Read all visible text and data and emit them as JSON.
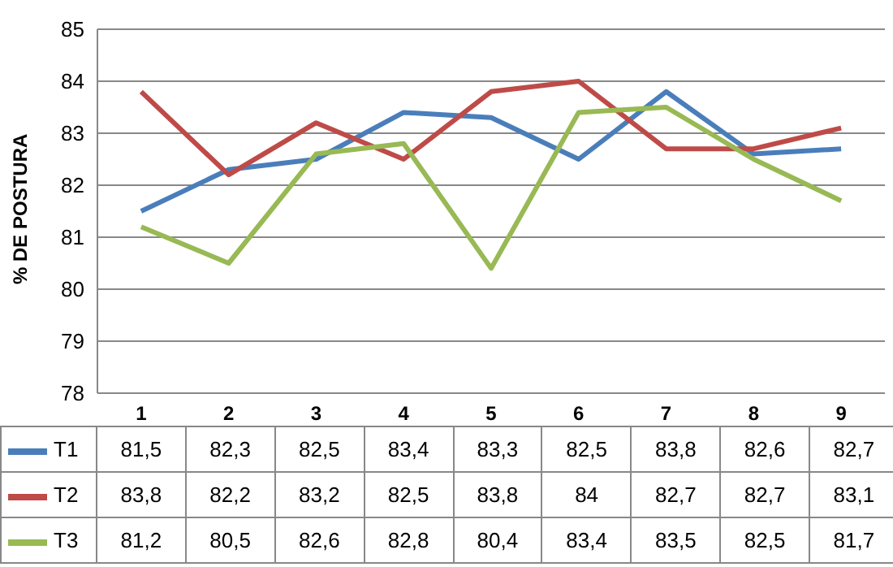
{
  "chart_data": {
    "type": "line",
    "ylabel": "% DE POSTURA",
    "categories": [
      "1",
      "2",
      "3",
      "4",
      "5",
      "6",
      "7",
      "8",
      "9"
    ],
    "ylim": [
      78,
      85
    ],
    "yticks": [
      78,
      79,
      80,
      81,
      82,
      83,
      84,
      85
    ],
    "grid": "y",
    "legend": "bottom",
    "marker": "none",
    "line_style": "solid",
    "series": [
      {
        "name": "T1",
        "color": "#4a7ebb",
        "values": [
          81.5,
          82.3,
          82.5,
          83.4,
          83.3,
          82.5,
          83.8,
          82.6,
          82.7
        ],
        "value_labels": [
          "81,5",
          "82,3",
          "82,5",
          "83,4",
          "83,3",
          "82,5",
          "83,8",
          "82,6",
          "82,7"
        ]
      },
      {
        "name": "T2",
        "color": "#be4b48",
        "values": [
          83.8,
          82.2,
          83.2,
          82.5,
          83.8,
          84,
          82.7,
          82.7,
          83.1
        ],
        "value_labels": [
          "83,8",
          "82,2",
          "83,2",
          "82,5",
          "83,8",
          "84",
          "82,7",
          "82,7",
          "83,1"
        ]
      },
      {
        "name": "T3",
        "color": "#98b954",
        "values": [
          81.2,
          80.5,
          82.6,
          82.8,
          80.4,
          83.4,
          83.5,
          82.5,
          81.7
        ],
        "value_labels": [
          "81,2",
          "80,5",
          "82,6",
          "82,8",
          "80,4",
          "83,4",
          "83,5",
          "82,5",
          "81,7"
        ]
      }
    ]
  }
}
